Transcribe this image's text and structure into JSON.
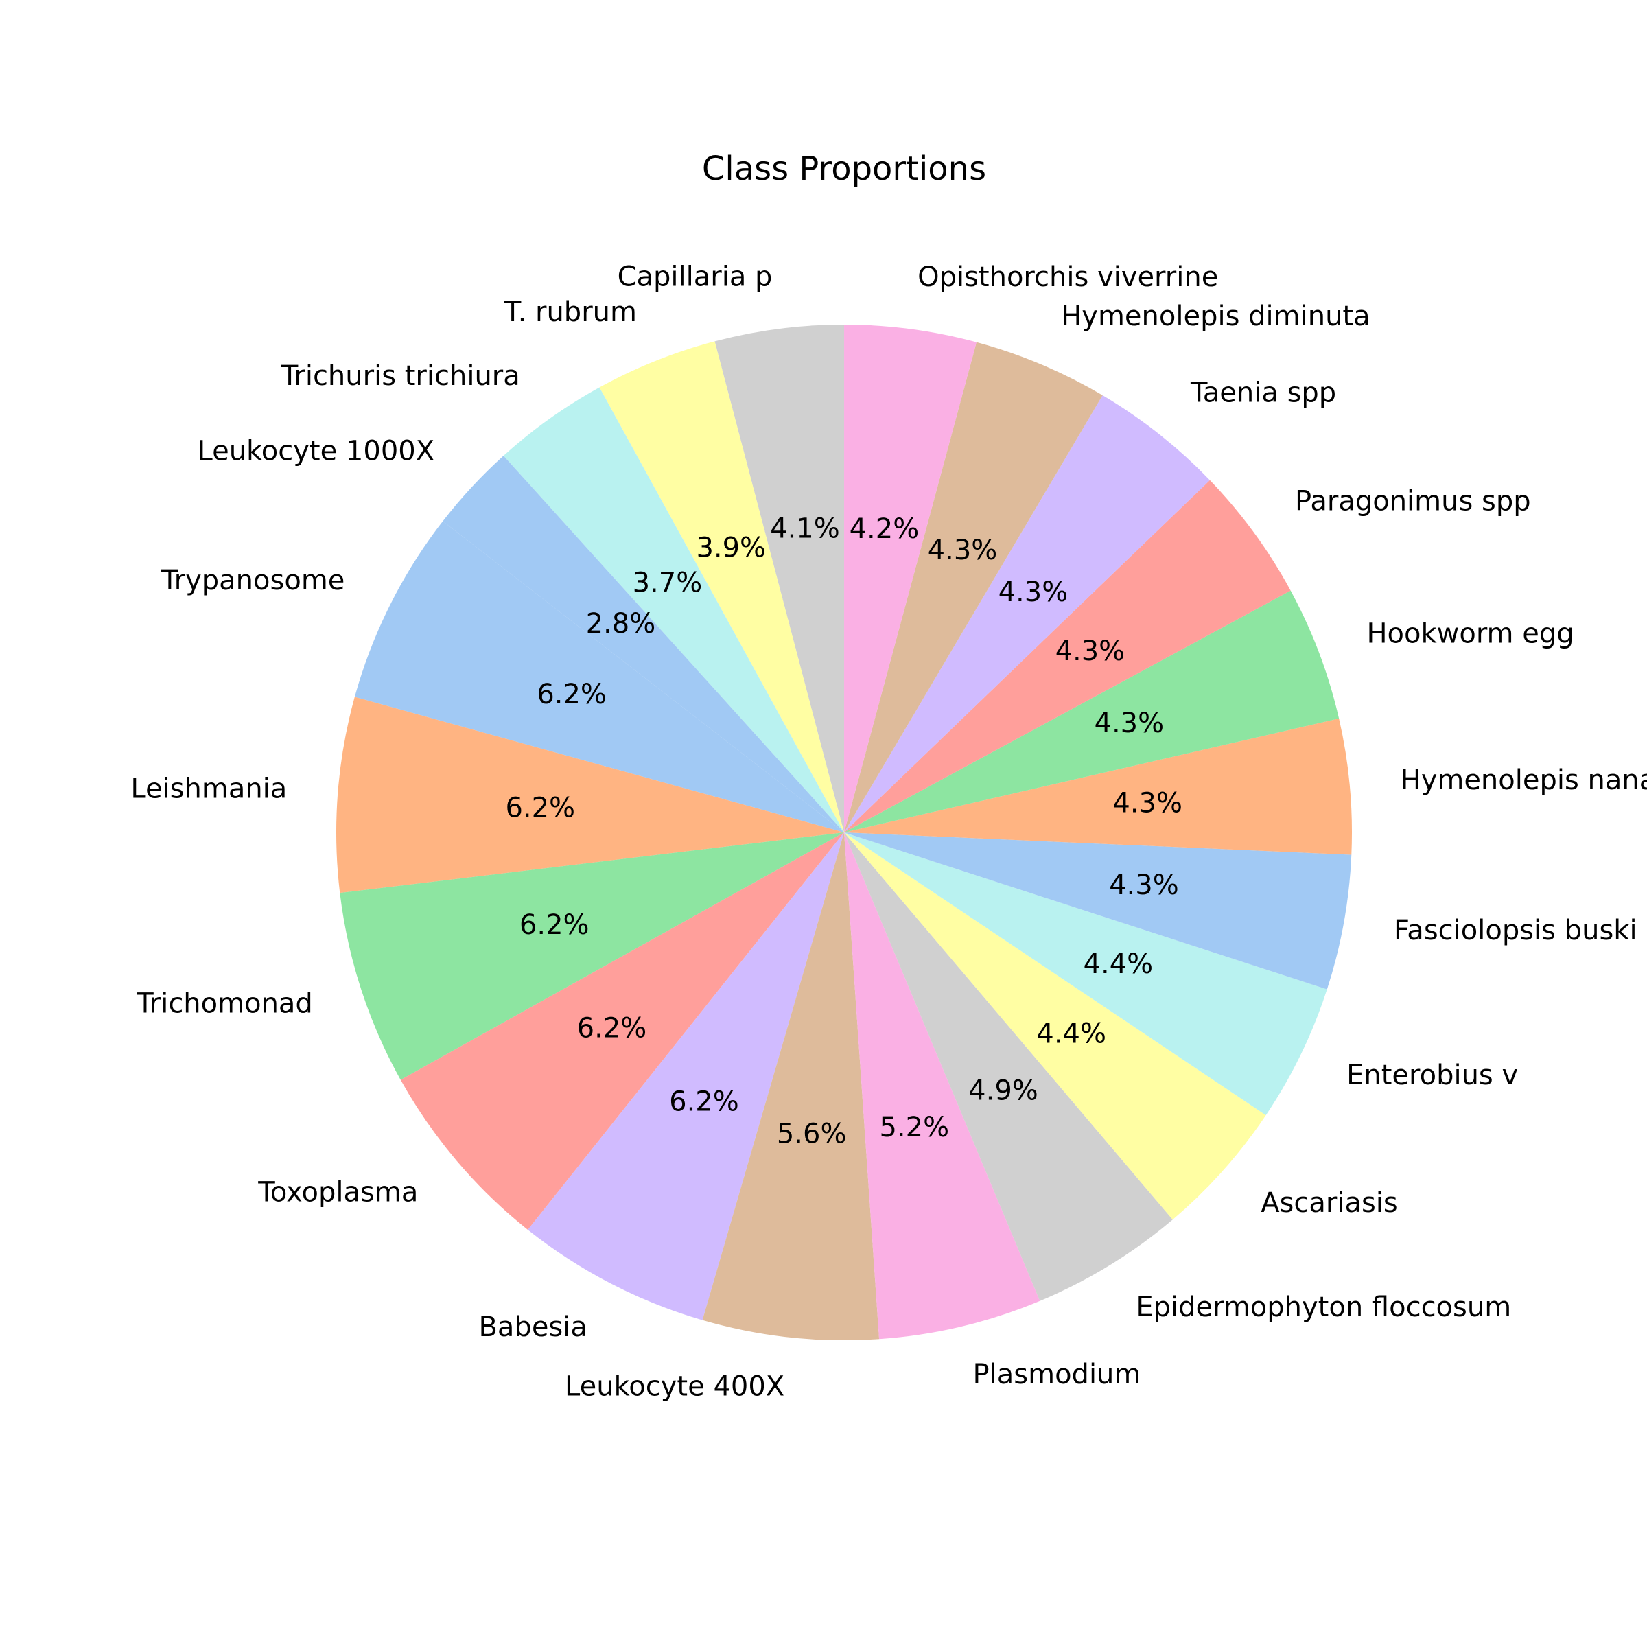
{
  "chart_data": {
    "type": "pie",
    "title": "Class Proportions",
    "start_angle_deg": 90,
    "direction": "counterclockwise",
    "labels": [
      "Capillaria p",
      "T. rubrum",
      "Trichuris trichiura",
      "Leukocyte 1000X",
      "Trypanosome",
      "Leishmania",
      "Trichomonad",
      "Toxoplasma",
      "Babesia",
      "Leukocyte 400X",
      "Plasmodium",
      "Epidermophyton floccosum",
      "Ascariasis",
      "Enterobius v",
      "Fasciolopsis buski",
      "Hymenolepis nana",
      "Hookworm egg",
      "Paragonimus spp",
      "Taenia spp",
      "Hymenolepis diminuta",
      "Opisthorchis viverrine"
    ],
    "values": [
      4.1,
      3.9,
      3.7,
      2.8,
      6.2,
      6.2,
      6.2,
      6.2,
      6.2,
      5.6,
      5.2,
      4.9,
      4.4,
      4.4,
      4.3,
      4.3,
      4.3,
      4.3,
      4.3,
      4.3,
      4.2
    ],
    "pct_labels": [
      "4.1%",
      "3.9%",
      "3.7%",
      "2.8%",
      "6.2%",
      "6.2%",
      "6.2%",
      "6.2%",
      "6.2%",
      "5.6%",
      "5.2%",
      "4.9%",
      "4.4%",
      "4.4%",
      "4.3%",
      "4.3%",
      "4.3%",
      "4.3%",
      "4.3%",
      "4.3%",
      "4.2%"
    ],
    "colors": [
      "#d0d0d0",
      "#fffea3",
      "#b9f2f0",
      "#a1c9f4",
      "#a1c9f4",
      "#ffb482",
      "#8de5a1",
      "#ff9f9b",
      "#d0bbff",
      "#debb9b",
      "#fab0e4",
      "#d0d0d0",
      "#fffea3",
      "#b9f2f0",
      "#a1c9f4",
      "#ffb482",
      "#8de5a1",
      "#ff9f9b",
      "#d0bbff",
      "#debb9b",
      "#fab0e4"
    ],
    "legend": "none"
  }
}
